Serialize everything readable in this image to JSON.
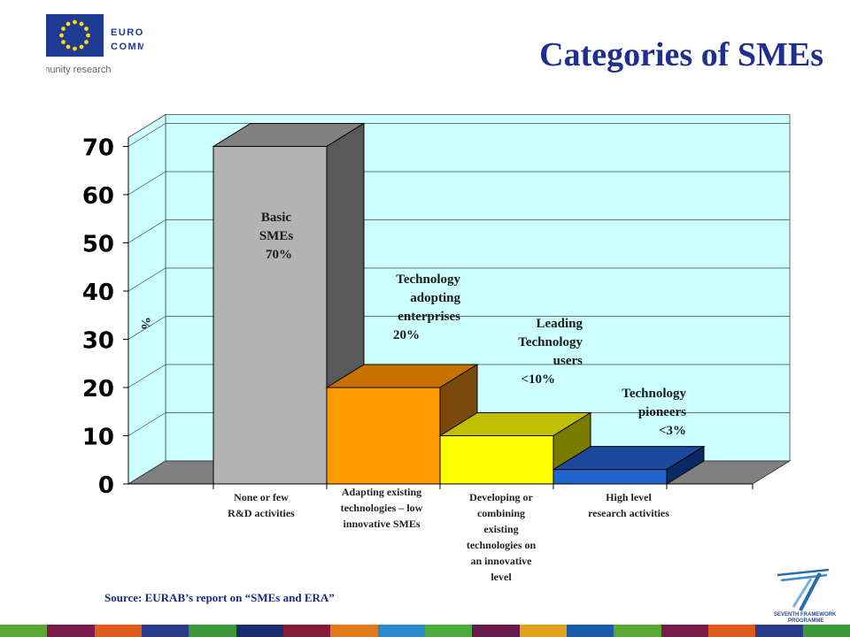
{
  "header": {
    "org_line1": "EUROPEAN",
    "org_line2": "COMMISSION",
    "org_sub": "Community research",
    "title": "Categories of SMEs"
  },
  "footer": {
    "source": "Source: EURAB’s report on “SMEs and ERA”",
    "fp7_line1": "SEVENTH FRAMEWORK",
    "fp7_line2": "PROGRAMME"
  },
  "colors": {
    "title": "#1f2f8f",
    "plot_bg": "#ccffff",
    "floor": "#808080",
    "stripes": [
      "#5aa832",
      "#7a1a4a",
      "#e05a1a",
      "#2a3a8a",
      "#3a9a3a",
      "#1a2a70",
      "#8a1a3a",
      "#e07a1a",
      "#2a8ad0",
      "#4aaa3a",
      "#6a1a4a",
      "#e0a01a",
      "#1a5aaa",
      "#5aa832",
      "#7a1a4a",
      "#e05a1a",
      "#2a3a8a",
      "#3a9a3a"
    ]
  },
  "chart_data": {
    "type": "bar",
    "ylabel": "%",
    "ylim": [
      0,
      70
    ],
    "yticks": [
      "0",
      "10",
      "20",
      "30",
      "40",
      "50",
      "60",
      "70"
    ],
    "grid": true,
    "categories": [
      "None or few R&D activities",
      "Adapting existing technologies – low innovative SMEs",
      "Developing or combining existing technologies on an innovative level",
      "High level research activities"
    ],
    "category_lines": [
      [
        "None or few",
        "R&D activities"
      ],
      [
        "Adapting existing",
        "technologies – low",
        "innovative SMEs"
      ],
      [
        "Developing or",
        "combining",
        "existing",
        "technologies on",
        "an innovative",
        "level"
      ],
      [
        "High level",
        "research activities"
      ]
    ],
    "values": [
      70,
      20,
      10,
      3
    ],
    "bar_colors": [
      {
        "front": "#b3b3b3",
        "side": "#595959",
        "top": "#808080"
      },
      {
        "front": "#ff9900",
        "side": "#7a4a0a",
        "top": "#c77200"
      },
      {
        "front": "#ffff00",
        "side": "#7a7a00",
        "top": "#c0c000"
      },
      {
        "front": "#1f66cc",
        "side": "#0a2a66",
        "top": "#1a4a99"
      }
    ],
    "annotations": [
      {
        "lines": [
          "Basic",
          "SMEs",
          "70%"
        ],
        "align": "middle",
        "anchors": [
          0,
          0,
          0
        ]
      },
      {
        "lines": [
          "Technology",
          "adopting",
          "enterprises",
          "",
          "20%"
        ],
        "align": "end",
        "anchors": [
          0,
          0,
          0,
          0,
          0
        ]
      },
      {
        "lines": [
          "Leading",
          "Technology",
          "users",
          "",
          "<10%"
        ],
        "align": "end",
        "anchors": [
          0,
          0,
          0,
          0,
          0
        ]
      },
      {
        "lines": [
          "Technology",
          "pioneers",
          "<3%"
        ],
        "align": "end",
        "anchors": [
          0,
          0,
          0
        ]
      }
    ]
  }
}
